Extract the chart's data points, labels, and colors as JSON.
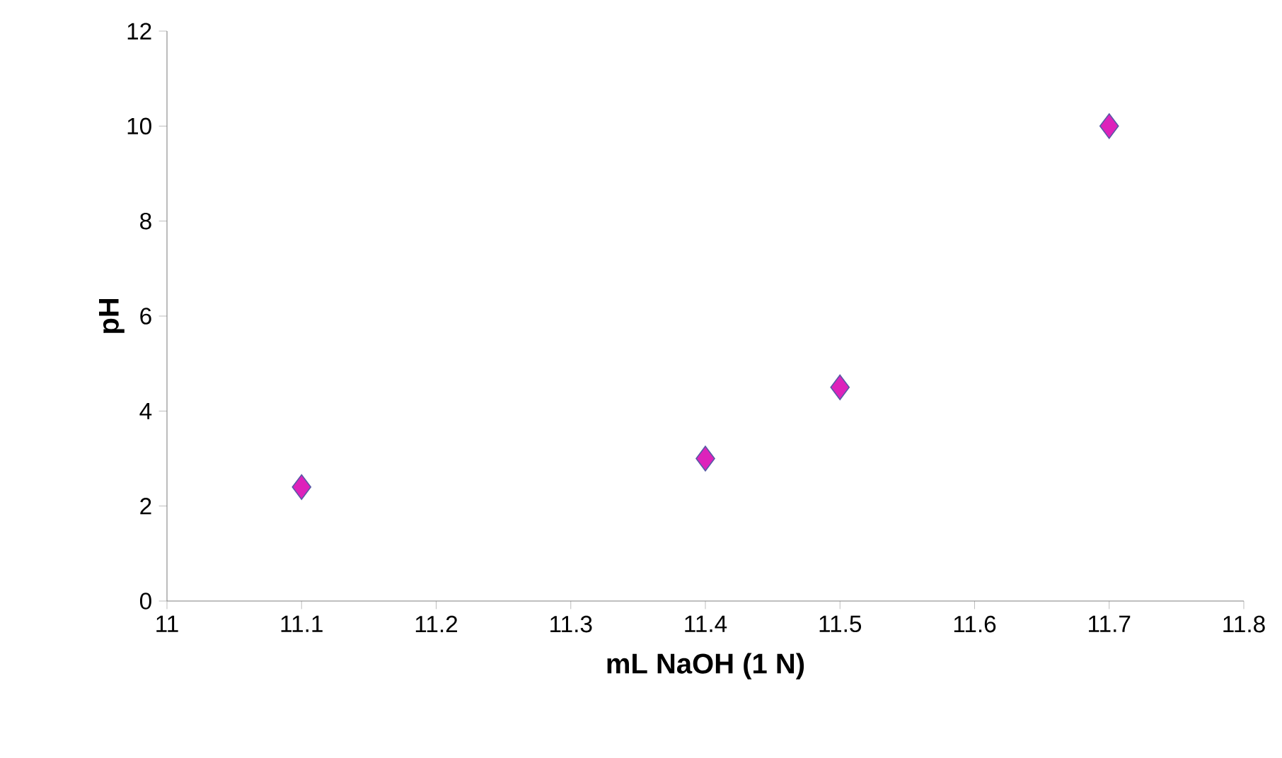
{
  "chart_data": {
    "type": "scatter",
    "xlabel": "mL NaOH (1 N)",
    "ylabel": "pH",
    "x": [
      11.1,
      11.4,
      11.5,
      11.7
    ],
    "values": [
      2.4,
      3.0,
      4.5,
      10
    ],
    "color": "#dd22bb",
    "marker": "diamond",
    "xlim": [
      11,
      11.8
    ],
    "xticks": [
      11,
      11.1,
      11.2,
      11.3,
      11.4,
      11.5,
      11.6,
      11.7,
      11.8
    ],
    "ylim": [
      0,
      12
    ],
    "yticks": [
      0,
      2,
      4,
      6,
      8,
      10,
      12
    ]
  }
}
